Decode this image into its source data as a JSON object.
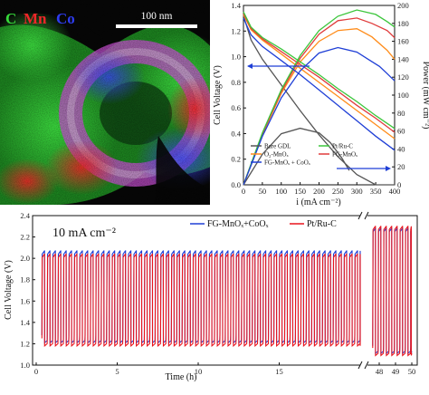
{
  "panel_a": {
    "elements": [
      {
        "symbol": "C",
        "color": "#36d93a"
      },
      {
        "symbol": "Mn",
        "color": "#f0262a"
      },
      {
        "symbol": "Co",
        "color": "#2e3cf0"
      }
    ],
    "scale_bar_label": "100 nm"
  },
  "chart_data": [
    {
      "type": "line",
      "xlabel": "i (mA cm⁻²)",
      "ylabel": "Cell Voltage (V)",
      "y2label": "Power (mW cm⁻²)",
      "xlim": [
        0,
        400
      ],
      "ylim": [
        0.0,
        1.4
      ],
      "y2lim": [
        0,
        200
      ],
      "xticks": [
        0,
        50,
        100,
        150,
        200,
        250,
        300,
        350,
        400
      ],
      "yticks": [
        0.0,
        0.2,
        0.4,
        0.6,
        0.8,
        1.0,
        1.2,
        1.4
      ],
      "y2ticks": [
        0,
        20,
        40,
        60,
        80,
        100,
        120,
        140,
        160,
        180,
        200
      ],
      "legend_position": "bottom",
      "series": [
        {
          "name": "Bare GDL",
          "color": "#555555",
          "axis": "voltage",
          "x": [
            0,
            20,
            50,
            100,
            150,
            200,
            250,
            300,
            350,
            400
          ],
          "y": [
            1.32,
            1.13,
            0.98,
            0.78,
            0.58,
            0.39,
            0.22,
            0.08,
            -0.05,
            -0.15
          ]
        },
        {
          "name": "Bare GDL",
          "color": "#555555",
          "axis": "power",
          "x": [
            0,
            50,
            100,
            150,
            200,
            230,
            260,
            280
          ],
          "y": [
            0,
            34,
            57,
            63,
            58,
            47,
            30,
            16
          ]
        },
        {
          "name": "O₂-MnOₓ",
          "color": "#ff8c1a",
          "axis": "voltage",
          "x": [
            0,
            20,
            50,
            100,
            150,
            200,
            250,
            300,
            350,
            400
          ],
          "y": [
            1.33,
            1.21,
            1.13,
            1.02,
            0.91,
            0.8,
            0.69,
            0.58,
            0.47,
            0.36
          ]
        },
        {
          "name": "O₂-MnOₓ",
          "color": "#ff8c1a",
          "axis": "power",
          "x": [
            0,
            50,
            100,
            150,
            200,
            250,
            300,
            340,
            380,
            400
          ],
          "y": [
            0,
            56,
            102,
            137,
            160,
            172,
            174,
            165,
            150,
            140
          ]
        },
        {
          "name": "FG-MnOₓ",
          "color": "#e03c3c",
          "axis": "voltage",
          "x": [
            0,
            20,
            50,
            100,
            150,
            200,
            250,
            300,
            350,
            400
          ],
          "y": [
            1.34,
            1.22,
            1.14,
            1.04,
            0.94,
            0.84,
            0.73,
            0.62,
            0.52,
            0.41
          ]
        },
        {
          "name": "FG-MnOₓ",
          "color": "#e03c3c",
          "axis": "power",
          "x": [
            0,
            50,
            100,
            150,
            200,
            250,
            300,
            340,
            380,
            400
          ],
          "y": [
            0,
            57,
            104,
            141,
            168,
            183,
            186,
            180,
            172,
            164
          ]
        },
        {
          "name": "Pt/Ru-C",
          "color": "#3cc63c",
          "axis": "voltage",
          "x": [
            0,
            20,
            50,
            100,
            150,
            200,
            250,
            300,
            350,
            400
          ],
          "y": [
            1.35,
            1.23,
            1.15,
            1.06,
            0.96,
            0.86,
            0.75,
            0.65,
            0.54,
            0.44
          ]
        },
        {
          "name": "Pt/Ru-C",
          "color": "#3cc63c",
          "axis": "power",
          "x": [
            0,
            50,
            100,
            150,
            200,
            250,
            300,
            350,
            380,
            400
          ],
          "y": [
            0,
            58,
            106,
            144,
            172,
            188,
            195,
            190,
            182,
            176
          ]
        },
        {
          "name": "FG-MnOₓ + CoOₓ",
          "color": "#1f3fd6",
          "axis": "voltage",
          "x": [
            0,
            20,
            50,
            100,
            150,
            200,
            250,
            300,
            350,
            400
          ],
          "y": [
            1.3,
            1.17,
            1.08,
            0.97,
            0.86,
            0.74,
            0.62,
            0.5,
            0.38,
            0.27
          ]
        },
        {
          "name": "FG-MnOₓ + CoOₓ",
          "color": "#1f3fd6",
          "axis": "power",
          "x": [
            0,
            50,
            100,
            150,
            200,
            250,
            300,
            330,
            360,
            380,
            390,
            400
          ],
          "y": [
            0,
            54,
            97,
            127,
            147,
            153,
            148,
            140,
            132,
            124,
            120,
            116
          ]
        }
      ]
    },
    {
      "type": "line",
      "annotation": "10 mA cm⁻²",
      "xlabel": "Time (h)",
      "ylabel": "Cell Voltage (V)",
      "ylim": [
        1.0,
        2.4
      ],
      "yticks": [
        1.0,
        1.2,
        1.4,
        1.6,
        1.8,
        2.0,
        2.2,
        2.4
      ],
      "xlim_main": [
        0,
        20
      ],
      "xticks_main": [
        0,
        5,
        10,
        15
      ],
      "xlim_break": [
        47.5,
        50
      ],
      "xticks_break": [
        48,
        49,
        50
      ],
      "legend_position": "top-right",
      "series": [
        {
          "name": "FG-MnOₓ+CoOₓ",
          "color": "#1f3fd6",
          "cycle_period_h": 0.333,
          "charge_V": 2.07,
          "discharge_V": 1.23,
          "charge_V_late": 2.28,
          "discharge_V_late": 1.13
        },
        {
          "name": "Pt/Ru-C",
          "color": "#e8141c",
          "cycle_period_h": 0.333,
          "charge_V": 2.04,
          "discharge_V": 1.2,
          "charge_V_late": 2.3,
          "discharge_V_late": 1.11
        }
      ]
    }
  ]
}
